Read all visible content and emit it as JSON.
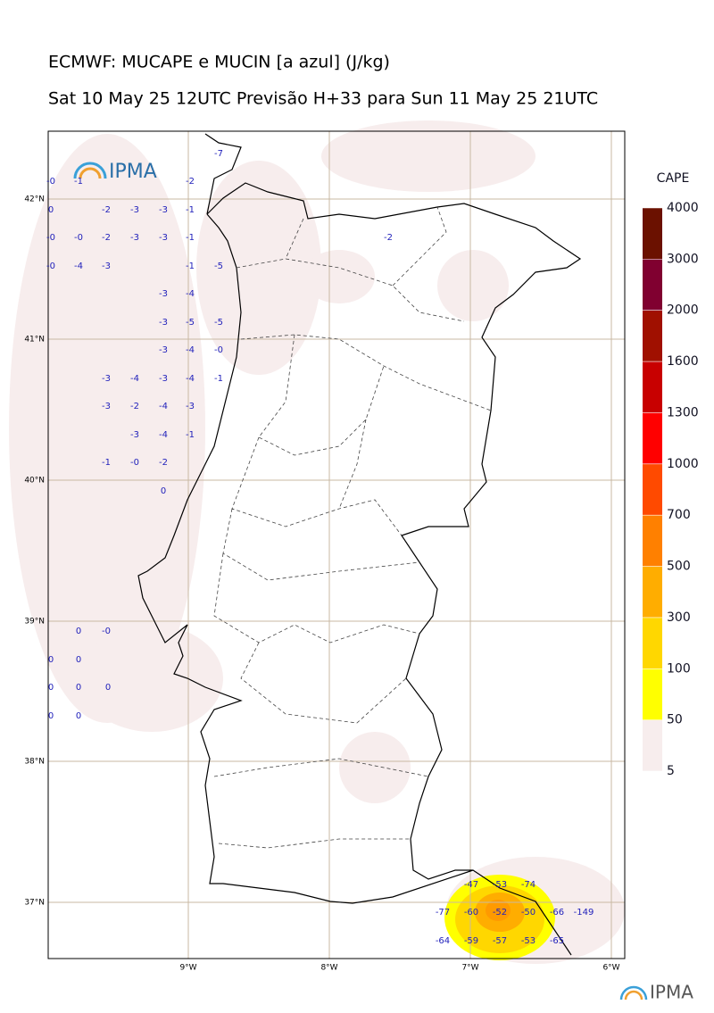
{
  "header": {
    "title": "ECMWF: MUCAPE e MUCIN [a azul] (J/kg)",
    "subtitle": "Sat 10 May 25 12UTC Previsão H+33 para Sun 11 May 25 21UTC"
  },
  "logo": {
    "text": "IPMA"
  },
  "footer_logo": {
    "text": "IPMA"
  },
  "map": {
    "lat_labels": [
      "42°N",
      "41°N",
      "40°N",
      "39°N",
      "38°N",
      "37°N"
    ],
    "lon_labels": [
      "9°W",
      "8°W",
      "7°W",
      "6°W"
    ],
    "cin_labels": [
      "-0",
      "-1",
      "-2",
      "-7",
      "0",
      "-2",
      "-3",
      "-3",
      "-1",
      "-0",
      "-0",
      "-2",
      "-3",
      "-3",
      "-1",
      "-2",
      "-0",
      "-4",
      "-3",
      "-1",
      "-5",
      "-3",
      "-4",
      "-3",
      "-5",
      "-5",
      "-3",
      "-4",
      "-0",
      "-3",
      "-4",
      "-3",
      "-4",
      "-1",
      "-3",
      "-2",
      "-4",
      "-3",
      "-3",
      "-4",
      "-1",
      "-1",
      "-0",
      "-2",
      "0",
      "0",
      "-0",
      "0",
      "0",
      "0",
      "0",
      "0",
      "0",
      "0",
      "-47",
      "-53",
      "-74",
      "-77",
      "-60",
      "-52",
      "-50",
      "-66",
      "-149",
      "-64",
      "-59",
      "-57",
      "-53",
      "-65"
    ]
  },
  "colorbar": {
    "title": "CAPE",
    "levels": [
      5,
      50,
      100,
      300,
      500,
      700,
      1000,
      1300,
      1600,
      2000,
      3000,
      4000
    ],
    "colors": [
      "#f7eded",
      "#ffff00",
      "#ffd700",
      "#ffad00",
      "#ff8000",
      "#ff4a00",
      "#ff0000",
      "#c80000",
      "#a01000",
      "#800030",
      "#6b1100"
    ]
  }
}
